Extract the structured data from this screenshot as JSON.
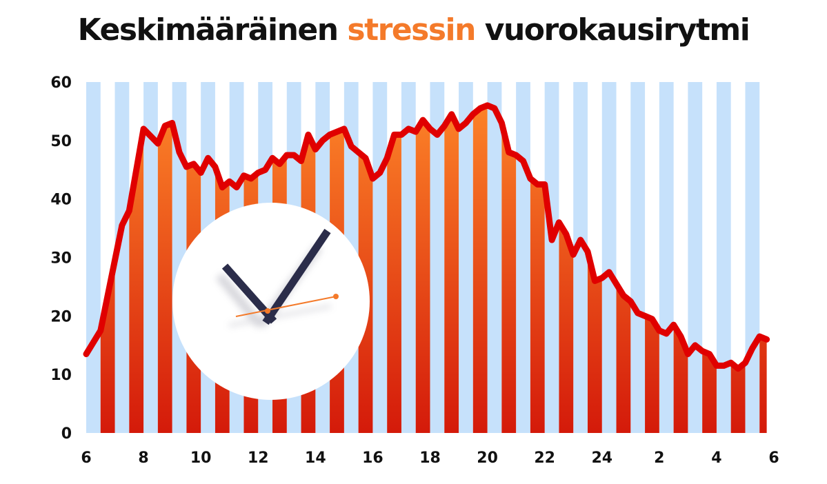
{
  "title": {
    "part1": "Keskimääräinen ",
    "part2": "stressin",
    "part3": " vuorokausirytmi"
  },
  "colors": {
    "line": "#e00000",
    "stripe": "#c6e1fb",
    "fill_top": "#ff8a2a",
    "fill_bottom": "#d41a0a",
    "highlight": "#f47a2a",
    "clock_hands": "#2b2d4a",
    "clock_face": "#ffffff"
  },
  "clock_icon": "analog-clock-icon",
  "chart_data": {
    "type": "line",
    "title": "Keskimääräinen stressin vuorokausirytmi",
    "xlabel": "",
    "ylabel": "",
    "ylim": [
      0,
      60
    ],
    "yticks": [
      "0",
      "10",
      "20",
      "30",
      "40",
      "50",
      "60"
    ],
    "xticks": [
      "6",
      "8",
      "10",
      "12",
      "14",
      "16",
      "18",
      "20",
      "22",
      "24",
      "2",
      "4",
      "6"
    ],
    "hours_span": 24,
    "grid": false,
    "background": "alternating vertical half-hour stripes (light blue) with gradient-filled area under the line",
    "series": [
      {
        "x": [
          0,
          0.5,
          1,
          1.25,
          1.5,
          2,
          2.5,
          2.75,
          3,
          3.25,
          3.5,
          3.75,
          4,
          4.25,
          4.5,
          4.75,
          5,
          5.25,
          5.5,
          5.75,
          6,
          6.25,
          6.5,
          6.75,
          7,
          7.25,
          7.5,
          7.75,
          8,
          8.25,
          8.5,
          8.75,
          9,
          9.25,
          9.5,
          9.75,
          10,
          10.25,
          10.5,
          10.75,
          11,
          11.25,
          11.5,
          11.75,
          12,
          12.25,
          12.5,
          12.75,
          13,
          13.25,
          13.5,
          13.75,
          14,
          14.25,
          14.5,
          14.75,
          15,
          15.25,
          15.5,
          15.75,
          16,
          16.25,
          16.5,
          16.75,
          17,
          17.25,
          17.5,
          17.75,
          18,
          18.25,
          18.5,
          18.75,
          19,
          19.25,
          19.5,
          19.75,
          20,
          20.25,
          20.5,
          20.75,
          21,
          21.25,
          21.5,
          21.75,
          22,
          22.25,
          22.5,
          22.75,
          23,
          23.25,
          23.5,
          23.75
        ],
        "values": [
          13.5,
          17.5,
          29.5,
          35.5,
          38,
          52,
          49.5,
          52.5,
          53,
          48,
          45.5,
          46,
          44.5,
          47,
          45.5,
          42,
          43,
          42,
          44,
          43.5,
          44.5,
          45,
          47,
          46,
          47.5,
          47.5,
          46.5,
          51,
          48.5,
          50,
          51,
          51.5,
          52,
          49,
          48,
          47,
          43.5,
          44.5,
          47,
          51,
          51,
          52,
          51.5,
          53.5,
          52,
          51,
          52.5,
          54.5,
          52,
          53,
          54.5,
          55.5,
          56,
          55.5,
          53,
          48,
          47.5,
          46.5,
          43.5,
          42.5,
          42.5,
          33,
          36,
          34,
          30.5,
          33,
          31,
          26,
          26.5,
          27.5,
          25.5,
          23.5,
          22.5,
          20.5,
          20,
          19.5,
          17.5,
          17,
          18.5,
          16.5,
          13.5,
          15,
          14,
          13.5,
          11.5,
          11.5,
          12,
          11,
          12,
          14.5,
          16.5,
          16
        ]
      }
    ]
  }
}
